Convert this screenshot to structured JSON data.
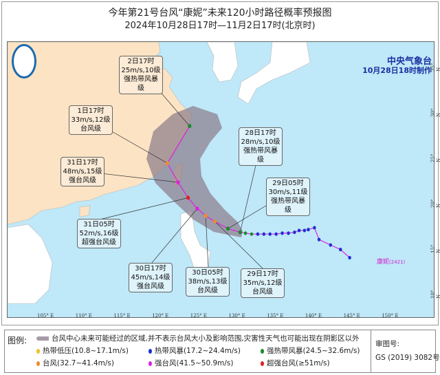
{
  "title": "今年第21号台风“康妮”未来120小时路径概率预报图",
  "subtitle": "2024年10月28日17时—11月2日17时(北京时)",
  "agency": "中央气象台",
  "issued": "10月28日18时制作",
  "typhoon_name": "康妮",
  "typhoon_id": "(2421)",
  "logo": "气象局 logo",
  "lon_ticks": [
    "105° E",
    "110° E",
    "115° E",
    "120° E",
    "125° E",
    "130° E",
    "135° E",
    "140° E",
    "145° E",
    "150° E"
  ],
  "lat_ticks": [
    "35° N",
    "30° N",
    "25° N",
    "20° N",
    "15° N",
    "10° N"
  ],
  "forecast": [
    {
      "time": "2日17时",
      "wind": "25m/s,10级",
      "level": "强热带风暴级",
      "cat": "sts",
      "lon": 124.1,
      "lat": 28.4
    },
    {
      "time": "1日17时",
      "wind": "33m/s,12级",
      "level": "台风级",
      "cat": "ty",
      "lon": 121.2,
      "lat": 24.3
    },
    {
      "time": "31日17时",
      "wind": "48m/s,15级",
      "level": "强台风级",
      "cat": "sty",
      "lon": 122.6,
      "lat": 22.2
    },
    {
      "time": "31日05时",
      "wind": "52m/s,16级",
      "level": "超强台风级",
      "cat": "super",
      "lon": 123.9,
      "lat": 20.5
    },
    {
      "time": "30日17时",
      "wind": "45m/s,14级",
      "level": "强台风级",
      "cat": "sty",
      "lon": 125.1,
      "lat": 19.3
    },
    {
      "time": "30日05时",
      "wind": "38m/s,13级",
      "level": "台风级",
      "cat": "ty",
      "lon": 126.2,
      "lat": 18.5
    },
    {
      "time": "29日17时",
      "wind": "35m/s,12级",
      "level": "台风级",
      "cat": "ty",
      "lon": 127.4,
      "lat": 17.9
    },
    {
      "time": "29日05时",
      "wind": "30m/s,11级",
      "level": "强热带风暴级",
      "cat": "sts",
      "lon": 129.1,
      "lat": 17.1
    },
    {
      "time": "28日17时",
      "wind": "28m/s,10级",
      "level": "强热带风暴级",
      "cat": "sts",
      "lon": 130.7,
      "lat": 16.7
    }
  ],
  "past_track": [
    [
      130.7,
      16.7
    ],
    [
      131.4,
      16.6
    ],
    [
      132.2,
      16.5
    ],
    [
      133.0,
      16.5
    ],
    [
      133.8,
      16.5
    ],
    [
      134.6,
      16.5
    ],
    [
      135.4,
      16.5
    ],
    [
      136.2,
      16.6
    ],
    [
      137.0,
      16.6
    ],
    [
      137.8,
      16.7
    ],
    [
      138.4,
      16.9
    ],
    [
      139.1,
      16.9
    ],
    [
      139.6,
      17.0
    ],
    [
      140.4,
      17.2
    ],
    [
      141.0,
      15.9
    ],
    [
      142.5,
      15.3
    ],
    [
      143.8,
      14.8
    ],
    [
      145.0,
      13.9
    ]
  ],
  "colors": {
    "td": "#f0c020",
    "ts": "#1a30d0",
    "sts": "#1a8a2a",
    "ty": "#f08a30",
    "sty": "#e020e0",
    "super": "#e02020",
    "track": "#e020e0",
    "cone": "#8a7a8a"
  },
  "legend": {
    "label": "图例:",
    "cone": "台风中心未来可能经过的区域,并不表示台风大小及影响范围,灾害性天气也可能出现在阴影区以外",
    "items": [
      {
        "cat": "td",
        "text": "热带低压(10.8~17.1m/s)"
      },
      {
        "cat": "ts",
        "text": "热带风暴(17.2~24.4m/s)"
      },
      {
        "cat": "sts",
        "text": "强热带风暴(24.5~32.6m/s)"
      },
      {
        "cat": "ty",
        "text": "台风(32.7~41.4m/s)"
      },
      {
        "cat": "sty",
        "text": "强台风(41.5~50.9m/s)"
      },
      {
        "cat": "super",
        "text": "超强台风(≥51m/s)"
      }
    ],
    "approval_label": "审图号:",
    "approval_no": "GS (2019) 3082号"
  }
}
